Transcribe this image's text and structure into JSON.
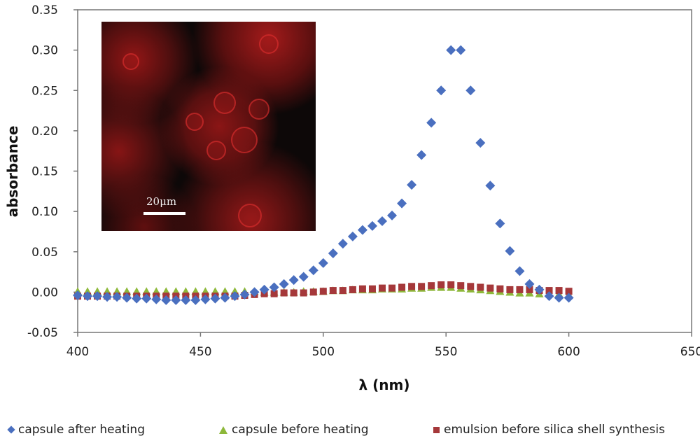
{
  "chart_data": {
    "type": "scatter",
    "title": "",
    "xlabel": "λ (nm)",
    "ylabel": "absorbance",
    "xlim": [
      400,
      650
    ],
    "ylim": [
      -0.05,
      0.35
    ],
    "x_ticks": [
      400,
      450,
      500,
      550,
      600,
      650
    ],
    "x_tick_labels": [
      "400",
      "450",
      "500",
      "550",
      "600",
      "650"
    ],
    "y_ticks": [
      -0.05,
      0,
      0.05,
      0.1,
      0.15,
      0.2,
      0.25,
      0.3,
      0.35
    ],
    "y_tick_labels": [
      "-0.05",
      "0.00",
      "0.05",
      "0.10",
      "0.15",
      "0.20",
      "0.25",
      "0.30",
      "0.35"
    ],
    "grid": false,
    "legend_position": "bottom",
    "x": [
      400,
      404,
      408,
      412,
      416,
      420,
      424,
      428,
      432,
      436,
      440,
      444,
      448,
      452,
      456,
      460,
      464,
      468,
      472,
      476,
      480,
      484,
      488,
      492,
      496,
      500,
      504,
      508,
      512,
      516,
      520,
      524,
      528,
      532,
      536,
      540,
      544,
      548,
      552,
      556,
      560,
      564,
      568,
      572,
      576,
      580,
      584,
      588,
      592,
      596,
      600
    ],
    "series": [
      {
        "name": "capsule after heating",
        "marker": "diamond",
        "color": "#4a6fbf",
        "values": [
          -0.004,
          -0.005,
          -0.005,
          -0.006,
          -0.006,
          -0.007,
          -0.008,
          -0.008,
          -0.009,
          -0.01,
          -0.01,
          -0.01,
          -0.01,
          -0.009,
          -0.008,
          -0.007,
          -0.005,
          -0.003,
          0.0,
          0.003,
          0.006,
          0.01,
          0.015,
          0.019,
          0.027,
          0.036,
          0.048,
          0.06,
          0.069,
          0.077,
          0.082,
          0.088,
          0.095,
          0.11,
          0.133,
          0.17,
          0.21,
          0.25,
          0.3,
          0.3,
          0.25,
          0.185,
          0.132,
          0.085,
          0.051,
          0.026,
          0.01,
          0.003,
          -0.005,
          -0.007,
          -0.007
        ]
      },
      {
        "name": "capsule before heating",
        "marker": "triangle",
        "color": "#8db83a",
        "values": [
          0.0,
          0.0,
          0.0,
          0.0,
          0.0,
          0.0,
          0.0,
          0.0,
          0.0,
          0.0,
          0.0,
          0.0,
          0.0,
          0.0,
          0.0,
          0.0,
          0.0,
          0.0,
          0.0,
          -0.001,
          -0.001,
          -0.001,
          -0.001,
          0.0,
          0.0,
          0.0,
          0.001,
          0.001,
          0.002,
          0.002,
          0.002,
          0.003,
          0.003,
          0.003,
          0.004,
          0.004,
          0.005,
          0.005,
          0.005,
          0.004,
          0.003,
          0.002,
          0.001,
          0.0,
          -0.001,
          -0.002,
          -0.002,
          -0.003,
          -0.003,
          -0.003,
          -0.004
        ]
      },
      {
        "name": "emulsion before silica shell synthesis",
        "marker": "square",
        "color": "#a5383a",
        "values": [
          -0.005,
          -0.005,
          -0.005,
          -0.005,
          -0.005,
          -0.005,
          -0.005,
          -0.005,
          -0.005,
          -0.005,
          -0.005,
          -0.005,
          -0.005,
          -0.005,
          -0.005,
          -0.005,
          -0.005,
          -0.004,
          -0.003,
          -0.002,
          -0.002,
          -0.001,
          -0.001,
          -0.001,
          0.0,
          0.001,
          0.002,
          0.002,
          0.003,
          0.004,
          0.004,
          0.005,
          0.005,
          0.006,
          0.007,
          0.007,
          0.008,
          0.009,
          0.009,
          0.008,
          0.007,
          0.006,
          0.005,
          0.004,
          0.003,
          0.003,
          0.003,
          0.002,
          0.002,
          0.002,
          0.001
        ]
      }
    ],
    "inset": {
      "description": "red fluorescence micrograph",
      "scale_bar_label": "20μm"
    }
  }
}
